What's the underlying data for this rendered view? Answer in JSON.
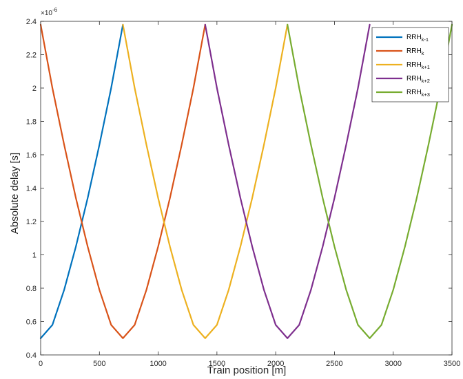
{
  "chart_data": {
    "type": "line",
    "title": "",
    "xlabel": "Train position [m]",
    "ylabel": "Absolute delay [s]",
    "xlim": [
      0,
      3500
    ],
    "ylim": [
      0.4,
      2.4
    ],
    "y_exponent_label": "×10",
    "y_exponent_power": "-6",
    "xticks": [
      "0",
      "500",
      "1000",
      "1500",
      "2000",
      "2500",
      "3000",
      "3500"
    ],
    "yticks": [
      "0.4",
      "0.6",
      "0.8",
      "1",
      "1.2",
      "1.4",
      "1.6",
      "1.8",
      "2",
      "2.2",
      "2.4"
    ],
    "grid": false,
    "legend_position": "top-right",
    "series": [
      {
        "name": "RRH",
        "subscript": "k-1",
        "color": "#0072BD",
        "x": [
          0,
          100,
          200,
          300,
          400,
          500,
          600,
          700
        ],
        "y": [
          0.5,
          0.58,
          0.79,
          1.05,
          1.34,
          1.66,
          2.0,
          2.38
        ]
      },
      {
        "name": "RRH",
        "subscript": "k",
        "color": "#D95319",
        "x": [
          0,
          100,
          200,
          300,
          400,
          500,
          600,
          700,
          800,
          900,
          1000,
          1100,
          1200,
          1300,
          1400
        ],
        "y": [
          2.38,
          2.0,
          1.66,
          1.34,
          1.05,
          0.79,
          0.58,
          0.5,
          0.58,
          0.79,
          1.05,
          1.34,
          1.66,
          2.0,
          2.38
        ]
      },
      {
        "name": "RRH",
        "subscript": "k+1",
        "color": "#EDB120",
        "x": [
          700,
          800,
          900,
          1000,
          1100,
          1200,
          1300,
          1400,
          1500,
          1600,
          1700,
          1800,
          1900,
          2000,
          2100
        ],
        "y": [
          2.38,
          2.0,
          1.66,
          1.34,
          1.05,
          0.79,
          0.58,
          0.5,
          0.58,
          0.79,
          1.05,
          1.34,
          1.66,
          2.0,
          2.38
        ]
      },
      {
        "name": "RRH",
        "subscript": "k+2",
        "color": "#7E2F8E",
        "x": [
          1400,
          1500,
          1600,
          1700,
          1800,
          1900,
          2000,
          2100,
          2200,
          2300,
          2400,
          2500,
          2600,
          2700,
          2800
        ],
        "y": [
          2.38,
          2.0,
          1.66,
          1.34,
          1.05,
          0.79,
          0.58,
          0.5,
          0.58,
          0.79,
          1.05,
          1.34,
          1.66,
          2.0,
          2.38
        ]
      },
      {
        "name": "RRH",
        "subscript": "k+3",
        "color": "#77AC30",
        "x": [
          2100,
          2200,
          2300,
          2400,
          2500,
          2600,
          2700,
          2800,
          2900,
          3000,
          3100,
          3200,
          3300,
          3400,
          3500
        ],
        "y": [
          2.38,
          2.0,
          1.66,
          1.34,
          1.05,
          0.79,
          0.58,
          0.5,
          0.58,
          0.79,
          1.05,
          1.34,
          1.66,
          2.0,
          2.38
        ]
      }
    ]
  }
}
